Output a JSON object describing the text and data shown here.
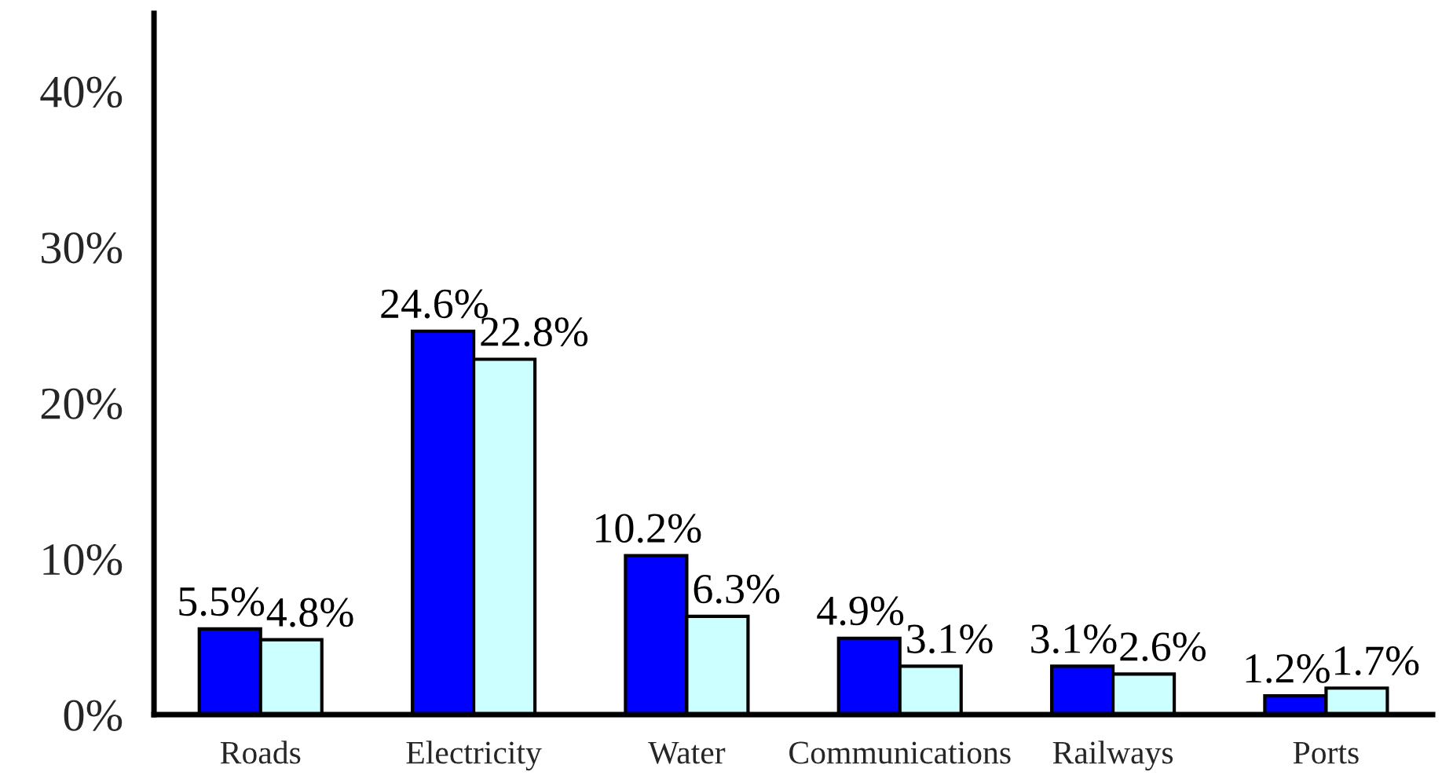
{
  "chart_data": {
    "type": "bar",
    "categories": [
      "Roads",
      "Electricity",
      "Water",
      "Communications",
      "Railways",
      "Ports"
    ],
    "series": [
      {
        "color": "#0000ff",
        "values": [
          5.5,
          24.6,
          10.2,
          4.9,
          3.1,
          1.2
        ],
        "value_labels": [
          "5.5%",
          "24.6%",
          "10.2%",
          "4.9%",
          "3.1%",
          "1.2%"
        ]
      },
      {
        "color": "#ccffff",
        "values": [
          4.8,
          22.8,
          6.3,
          3.1,
          2.6,
          1.7
        ],
        "value_labels": [
          "4.8%",
          "22.8%",
          "6.3%",
          "3.1%",
          "2.6%",
          "1.7%"
        ]
      }
    ],
    "ylim": [
      0,
      45
    ],
    "yticks": [
      {
        "value": 0,
        "label": "0%"
      },
      {
        "value": 10,
        "label": "10%"
      },
      {
        "value": 20,
        "label": "20%"
      },
      {
        "value": 30,
        "label": "30%"
      },
      {
        "value": 40,
        "label": "40%"
      }
    ],
    "grid": false
  }
}
